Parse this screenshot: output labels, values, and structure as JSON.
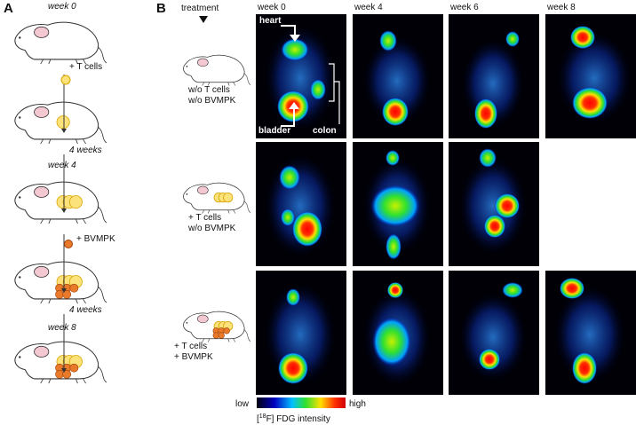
{
  "panel_a": {
    "label": "A",
    "steps": [
      "week 0",
      "+ T cells",
      "4 weeks",
      "week 4",
      "+ BVMPK",
      "4 weeks",
      "week 8"
    ]
  },
  "panel_b": {
    "label": "B",
    "treatment_label": "treatment",
    "columns": [
      "week 0",
      "week 4",
      "week 6",
      "week 8"
    ],
    "rows": [
      [
        "w/o T cells",
        "w/o BVMPK"
      ],
      [
        "+ T cells",
        "w/o BVMPK"
      ],
      [
        "+ T cells",
        "+ BVMPK"
      ]
    ],
    "annotations": {
      "heart": "heart",
      "bladder": "bladder",
      "colon": "colon"
    },
    "colorbar": {
      "low": "low",
      "high": "high",
      "caption_prefix": "[",
      "caption_sup": "18",
      "caption_rest": "F] FDG intensity"
    }
  }
}
